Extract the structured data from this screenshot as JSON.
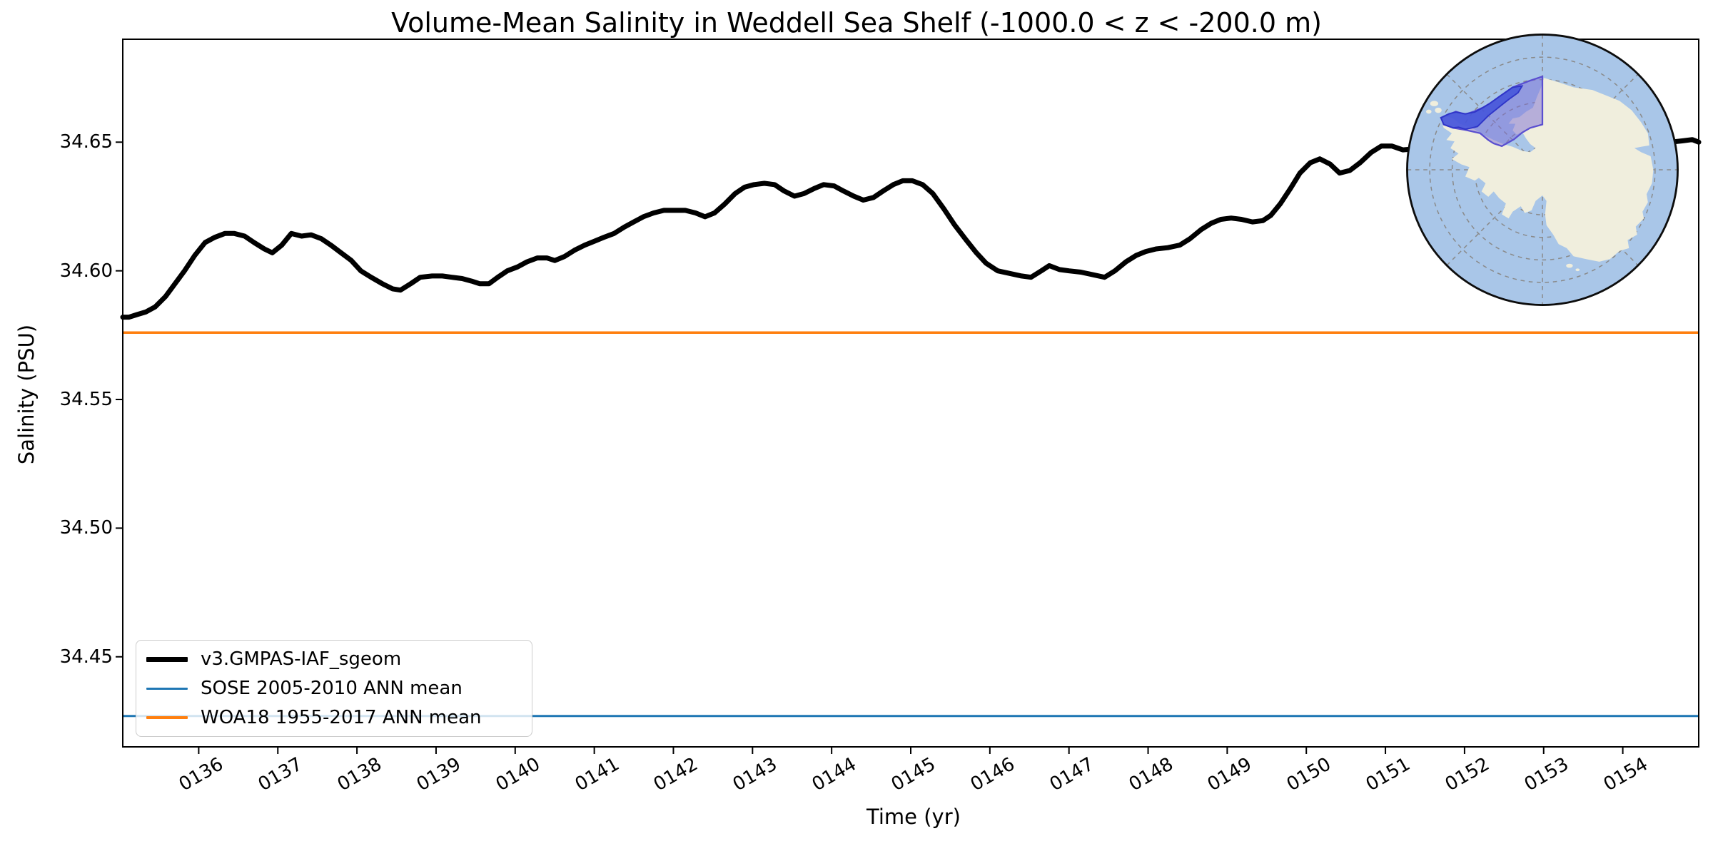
{
  "title": "Volume-Mean Salinity in Weddell Sea Shelf (-1000.0 < z < -200.0 m)",
  "axes": {
    "xlabel": "Time (yr)",
    "ylabel": "Salinity (PSU)",
    "xlim": [
      135.04,
      154.96
    ],
    "ylim": [
      34.415,
      34.69
    ],
    "x_tick_values": [
      136,
      137,
      138,
      139,
      140,
      141,
      142,
      143,
      144,
      145,
      146,
      147,
      148,
      149,
      150,
      151,
      152,
      153,
      154
    ],
    "x_tick_labels": [
      "0136",
      "0137",
      "0138",
      "0139",
      "0140",
      "0141",
      "0142",
      "0143",
      "0144",
      "0145",
      "0146",
      "0147",
      "0148",
      "0149",
      "0150",
      "0151",
      "0152",
      "0153",
      "0154"
    ],
    "y_tick_values": [
      34.45,
      34.5,
      34.55,
      34.6,
      34.65
    ],
    "y_tick_labels": [
      "34.45",
      "34.50",
      "34.55",
      "34.60",
      "34.65"
    ],
    "frame_color": "#000000"
  },
  "legend": {
    "items": [
      {
        "label": "v3.GMPAS-IAF_sgeom",
        "color": "#000000",
        "linewidth": 7
      },
      {
        "label": "SOSE 2005-2010 ANN mean",
        "color": "#1f77b4",
        "linewidth": 3
      },
      {
        "label": "WOA18 1955-2017 ANN mean",
        "color": "#ff7f0e",
        "linewidth": 3.5
      }
    ]
  },
  "chart_data": {
    "type": "line",
    "title": "Volume-Mean Salinity in Weddell Sea Shelf (-1000.0 < z < -200.0 m)",
    "xlabel": "Time (yr)",
    "ylabel": "Salinity (PSU)",
    "xlim": [
      135.04,
      154.96
    ],
    "ylim": [
      34.415,
      34.69
    ],
    "grid": false,
    "legend_position": "lower left",
    "series": [
      {
        "name": "v3.GMPAS-IAF_sgeom",
        "color": "#000000",
        "linewidth": 7,
        "points": [
          [
            135.04,
            34.582
          ],
          [
            135.12,
            34.582
          ],
          [
            135.22,
            34.583
          ],
          [
            135.33,
            34.584
          ],
          [
            135.45,
            34.586
          ],
          [
            135.58,
            34.59
          ],
          [
            135.7,
            34.595
          ],
          [
            135.82,
            34.6
          ],
          [
            135.95,
            34.606
          ],
          [
            136.08,
            34.611
          ],
          [
            136.2,
            34.613
          ],
          [
            136.33,
            34.6145
          ],
          [
            136.45,
            34.6145
          ],
          [
            136.58,
            34.6135
          ],
          [
            136.7,
            34.611
          ],
          [
            136.83,
            34.6085
          ],
          [
            136.93,
            34.607
          ],
          [
            137.05,
            34.61
          ],
          [
            137.17,
            34.6145
          ],
          [
            137.3,
            34.6135
          ],
          [
            137.42,
            34.614
          ],
          [
            137.55,
            34.6125
          ],
          [
            137.67,
            34.61
          ],
          [
            137.8,
            34.607
          ],
          [
            137.93,
            34.604
          ],
          [
            138.05,
            34.6
          ],
          [
            138.18,
            34.5975
          ],
          [
            138.32,
            34.595
          ],
          [
            138.45,
            34.593
          ],
          [
            138.55,
            34.5925
          ],
          [
            138.68,
            34.595
          ],
          [
            138.8,
            34.5975
          ],
          [
            138.95,
            34.598
          ],
          [
            139.08,
            34.598
          ],
          [
            139.2,
            34.5975
          ],
          [
            139.33,
            34.597
          ],
          [
            139.45,
            34.596
          ],
          [
            139.55,
            34.595
          ],
          [
            139.67,
            34.595
          ],
          [
            139.78,
            34.5975
          ],
          [
            139.9,
            34.6
          ],
          [
            140.03,
            34.6015
          ],
          [
            140.15,
            34.6035
          ],
          [
            140.28,
            34.605
          ],
          [
            140.4,
            34.605
          ],
          [
            140.5,
            34.604
          ],
          [
            140.62,
            34.6055
          ],
          [
            140.75,
            34.608
          ],
          [
            140.88,
            34.61
          ],
          [
            141.0,
            34.6115
          ],
          [
            141.12,
            34.613
          ],
          [
            141.25,
            34.6145
          ],
          [
            141.38,
            34.617
          ],
          [
            141.5,
            34.619
          ],
          [
            141.62,
            34.621
          ],
          [
            141.75,
            34.6225
          ],
          [
            141.88,
            34.6235
          ],
          [
            142.0,
            34.6235
          ],
          [
            142.15,
            34.6235
          ],
          [
            142.28,
            34.6225
          ],
          [
            142.4,
            34.621
          ],
          [
            142.52,
            34.6225
          ],
          [
            142.65,
            34.626
          ],
          [
            142.78,
            34.63
          ],
          [
            142.9,
            34.6325
          ],
          [
            143.02,
            34.6335
          ],
          [
            143.15,
            34.634
          ],
          [
            143.28,
            34.6335
          ],
          [
            143.4,
            34.631
          ],
          [
            143.53,
            34.629
          ],
          [
            143.65,
            34.63
          ],
          [
            143.78,
            34.632
          ],
          [
            143.9,
            34.6335
          ],
          [
            144.03,
            34.633
          ],
          [
            144.15,
            34.631
          ],
          [
            144.28,
            34.629
          ],
          [
            144.4,
            34.6275
          ],
          [
            144.53,
            34.6285
          ],
          [
            144.65,
            34.631
          ],
          [
            144.78,
            34.6335
          ],
          [
            144.9,
            34.635
          ],
          [
            145.02,
            34.635
          ],
          [
            145.15,
            34.6335
          ],
          [
            145.28,
            34.63
          ],
          [
            145.42,
            34.624
          ],
          [
            145.55,
            34.618
          ],
          [
            145.7,
            34.612
          ],
          [
            145.83,
            34.607
          ],
          [
            145.95,
            34.603
          ],
          [
            146.1,
            34.6
          ],
          [
            146.25,
            34.599
          ],
          [
            146.4,
            34.598
          ],
          [
            146.52,
            34.5975
          ],
          [
            146.65,
            34.6
          ],
          [
            146.75,
            34.602
          ],
          [
            146.88,
            34.6005
          ],
          [
            147.0,
            34.6
          ],
          [
            147.15,
            34.5995
          ],
          [
            147.3,
            34.5985
          ],
          [
            147.45,
            34.5975
          ],
          [
            147.58,
            34.6
          ],
          [
            147.72,
            34.6035
          ],
          [
            147.85,
            34.606
          ],
          [
            147.97,
            34.6075
          ],
          [
            148.1,
            34.6085
          ],
          [
            148.25,
            34.609
          ],
          [
            148.4,
            34.61
          ],
          [
            148.53,
            34.6125
          ],
          [
            148.67,
            34.616
          ],
          [
            148.8,
            34.6185
          ],
          [
            148.92,
            34.62
          ],
          [
            149.05,
            34.6205
          ],
          [
            149.18,
            34.62
          ],
          [
            149.32,
            34.619
          ],
          [
            149.45,
            34.6195
          ],
          [
            149.55,
            34.6215
          ],
          [
            149.67,
            34.626
          ],
          [
            149.8,
            34.632
          ],
          [
            149.92,
            34.638
          ],
          [
            150.05,
            34.642
          ],
          [
            150.17,
            34.6435
          ],
          [
            150.3,
            34.6415
          ],
          [
            150.42,
            34.638
          ],
          [
            150.55,
            34.639
          ],
          [
            150.68,
            34.642
          ],
          [
            150.82,
            34.646
          ],
          [
            150.95,
            34.6485
          ],
          [
            151.08,
            34.6485
          ],
          [
            151.22,
            34.647
          ],
          [
            151.4,
            34.6475
          ],
          [
            151.6,
            34.649
          ],
          [
            151.8,
            34.651
          ],
          [
            152.0,
            34.6525
          ],
          [
            152.2,
            34.6535
          ],
          [
            152.4,
            34.652
          ],
          [
            152.6,
            34.65
          ],
          [
            152.8,
            34.6505
          ],
          [
            153.0,
            34.652
          ],
          [
            153.2,
            34.6535
          ],
          [
            153.4,
            34.6525
          ],
          [
            153.6,
            34.651
          ],
          [
            153.8,
            34.65
          ],
          [
            154.0,
            34.651
          ],
          [
            154.2,
            34.652
          ],
          [
            154.4,
            34.6515
          ],
          [
            154.6,
            34.65
          ],
          [
            154.75,
            34.6505
          ],
          [
            154.88,
            34.651
          ],
          [
            154.96,
            34.65
          ]
        ]
      },
      {
        "name": "SOSE 2005-2010 ANN mean",
        "color": "#1f77b4",
        "linewidth": 3,
        "constant": 34.427
      },
      {
        "name": "WOA18 1955-2017 ANN mean",
        "color": "#ff7f0e",
        "linewidth": 3.5,
        "constant": 34.576
      }
    ]
  },
  "inset_map": {
    "name": "antarctica-polar-map",
    "description": "South polar stereographic map of Antarctica with the Weddell Sea shelf region highlighted",
    "ocean_color": "#a9c6e8",
    "land_color": "#f0eedd",
    "graticule_color": "#8a8a8a",
    "border_color": "#0d0d0d",
    "region_fill": "#7c6ed6",
    "region_fill_opacity": 0.5,
    "region_stroke": "#5a4fd0",
    "shelf_fill": "#4252da",
    "shelf_fill_opacity": 0.85,
    "shelf_stroke": "#2f35c8"
  }
}
